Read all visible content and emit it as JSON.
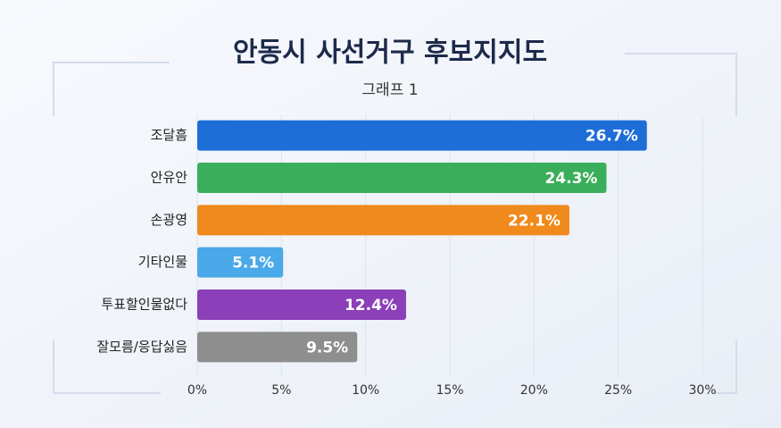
{
  "chart_data": {
    "type": "barh",
    "title": "안동시 사선거구 후보지지도",
    "subtitle": "그래프 1",
    "categories": [
      "조달흠",
      "안유안",
      "손광영",
      "기타인물",
      "투표할인물없다",
      "잘모름/응답싫음"
    ],
    "values": [
      26.7,
      24.3,
      22.1,
      5.1,
      12.4,
      9.5
    ],
    "value_labels": [
      "26.7%",
      "24.3%",
      "22.1%",
      "5.1%",
      "12.4%",
      "9.5%"
    ],
    "colors": [
      "#1f6ed8",
      "#3aae5a",
      "#f08a1c",
      "#4aa9e8",
      "#8b3fb8",
      "#8e8e8e"
    ],
    "xlim": [
      0,
      30
    ],
    "xticks": [
      {
        "value": 0,
        "label": "0%"
      },
      {
        "value": 5,
        "label": "5%"
      },
      {
        "value": 10,
        "label": "10%"
      },
      {
        "value": 15,
        "label": "15%"
      },
      {
        "value": 20,
        "label": "20%"
      },
      {
        "value": 25,
        "label": "25%"
      },
      {
        "value": 30,
        "label": "30%"
      }
    ],
    "grid": true
  }
}
